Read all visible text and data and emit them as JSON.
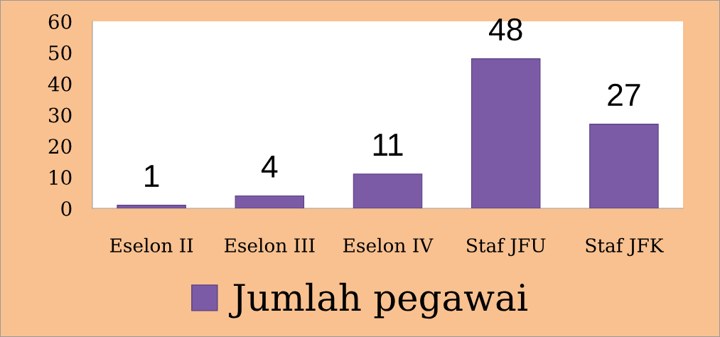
{
  "chart_data": {
    "type": "bar",
    "categories": [
      "Eselon II",
      "Eselon III",
      "Eselon IV",
      "Staf JFU",
      "Staf JFK"
    ],
    "series": [
      {
        "name": "Jumlah pegawai",
        "color": "#7b5aa6",
        "values": [
          1,
          4,
          11,
          48,
          27
        ]
      }
    ],
    "ylim": [
      0,
      60
    ],
    "yticks": [
      0,
      10,
      20,
      30,
      40,
      50,
      60
    ],
    "data_labels": true,
    "legend": "bottom",
    "grid": false
  }
}
